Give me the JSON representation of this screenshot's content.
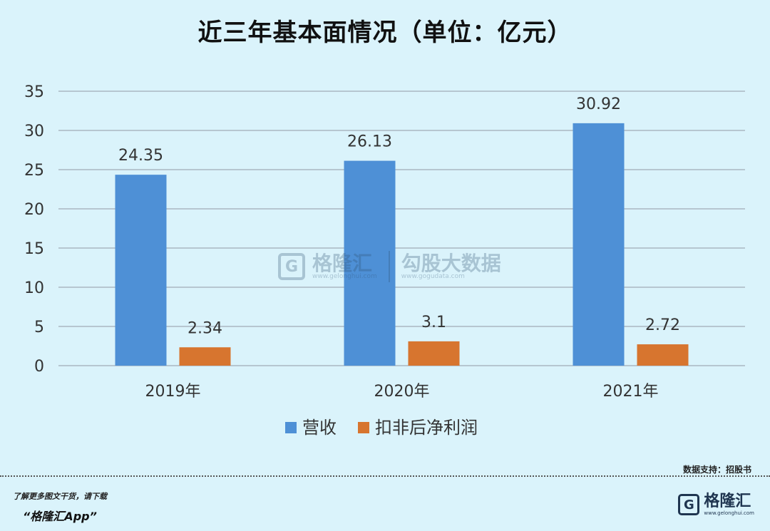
{
  "chart_data": {
    "type": "bar",
    "title": "近三年基本面情况（单位：亿元）",
    "categories": [
      "2019年",
      "2020年",
      "2021年"
    ],
    "series": [
      {
        "name": "营收",
        "values": [
          24.35,
          26.13,
          30.92
        ],
        "labels": [
          "24.35",
          "26.13",
          "30.92"
        ],
        "color": "#4e90d6"
      },
      {
        "name": "扣非后净利润",
        "values": [
          2.34,
          3.1,
          2.72
        ],
        "labels": [
          "2.34",
          "3.1",
          "2.72"
        ],
        "color": "#d7752f"
      }
    ],
    "ylim": [
      0,
      35
    ],
    "yticks": [
      "0",
      "5",
      "10",
      "15",
      "20",
      "25",
      "30",
      "35"
    ],
    "grid": true,
    "legend": "bottom"
  },
  "footer": {
    "source": "数据支持：招股书",
    "promo_line1": "了解更多图文干货，请下载",
    "promo_line2": "“格隆汇App”",
    "brand_name": "格隆汇",
    "brand_url": "www.gelonghui.com",
    "brand_letter": "G"
  },
  "watermark": {
    "letter": "G",
    "name1": "格隆汇",
    "url1": "www.gelonghui.com",
    "name2": "勾股大数据",
    "url2": "www.gogudata.com"
  },
  "colors": {
    "grid": "#aab8c2",
    "axis_text": "#333333",
    "background": "#daf3fb"
  }
}
